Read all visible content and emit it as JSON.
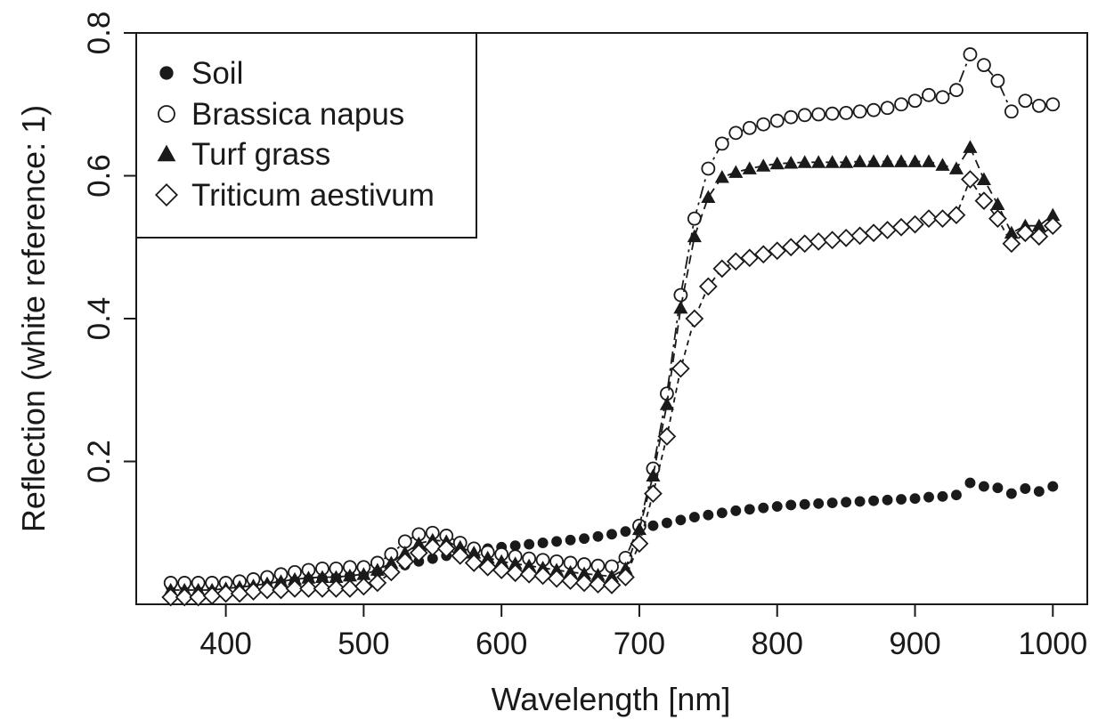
{
  "chart_data": {
    "type": "scatter",
    "xlabel": "Wavelength [nm]",
    "ylabel": "Reflection (white reference: 1)",
    "xlim": [
      335,
      1025
    ],
    "ylim": [
      0.0,
      0.8
    ],
    "xticks": [
      400,
      500,
      600,
      700,
      800,
      900,
      1000
    ],
    "yticks": [
      0.2,
      0.4,
      0.6,
      0.8
    ],
    "ytick_labels": [
      "0.2",
      "0.4",
      "0.6",
      "0.8"
    ],
    "legend_position": "top-left",
    "grid": false,
    "x": [
      360,
      370,
      380,
      390,
      400,
      410,
      420,
      430,
      440,
      450,
      460,
      470,
      480,
      490,
      500,
      510,
      520,
      530,
      540,
      550,
      560,
      570,
      580,
      590,
      600,
      610,
      620,
      630,
      640,
      650,
      660,
      670,
      680,
      690,
      700,
      710,
      720,
      730,
      740,
      750,
      760,
      770,
      780,
      790,
      800,
      810,
      820,
      830,
      840,
      850,
      860,
      870,
      880,
      890,
      900,
      910,
      920,
      930,
      940,
      950,
      960,
      970,
      980,
      990,
      1000
    ],
    "series": [
      {
        "name": "Soil",
        "marker": "filled-circle",
        "line": "none",
        "values": [
          0.025,
          0.025,
          0.025,
          0.025,
          0.026,
          0.027,
          0.028,
          0.03,
          0.031,
          0.033,
          0.035,
          0.036,
          0.038,
          0.04,
          0.042,
          0.045,
          0.05,
          0.055,
          0.06,
          0.064,
          0.068,
          0.071,
          0.075,
          0.078,
          0.08,
          0.082,
          0.084,
          0.086,
          0.088,
          0.09,
          0.092,
          0.095,
          0.098,
          0.102,
          0.106,
          0.11,
          0.114,
          0.118,
          0.122,
          0.125,
          0.128,
          0.131,
          0.133,
          0.135,
          0.137,
          0.139,
          0.14,
          0.141,
          0.142,
          0.143,
          0.144,
          0.145,
          0.146,
          0.147,
          0.148,
          0.15,
          0.151,
          0.153,
          0.17,
          0.165,
          0.163,
          0.155,
          0.162,
          0.158,
          0.165
        ]
      },
      {
        "name": "Brassica napus",
        "marker": "open-circle",
        "line": "dash-dot",
        "values": [
          0.03,
          0.03,
          0.03,
          0.03,
          0.03,
          0.032,
          0.035,
          0.038,
          0.042,
          0.045,
          0.048,
          0.05,
          0.05,
          0.052,
          0.052,
          0.058,
          0.07,
          0.088,
          0.098,
          0.1,
          0.096,
          0.086,
          0.078,
          0.073,
          0.07,
          0.067,
          0.064,
          0.062,
          0.06,
          0.058,
          0.056,
          0.054,
          0.053,
          0.065,
          0.11,
          0.19,
          0.295,
          0.433,
          0.54,
          0.61,
          0.645,
          0.66,
          0.667,
          0.672,
          0.677,
          0.682,
          0.685,
          0.686,
          0.687,
          0.688,
          0.69,
          0.692,
          0.695,
          0.7,
          0.705,
          0.713,
          0.71,
          0.72,
          0.77,
          0.755,
          0.733,
          0.69,
          0.705,
          0.698,
          0.7
        ]
      },
      {
        "name": "Turf grass",
        "marker": "filled-triangle",
        "line": "dashed",
        "values": [
          0.02,
          0.02,
          0.02,
          0.02,
          0.022,
          0.024,
          0.026,
          0.029,
          0.032,
          0.035,
          0.037,
          0.038,
          0.038,
          0.04,
          0.042,
          0.048,
          0.058,
          0.072,
          0.085,
          0.09,
          0.088,
          0.08,
          0.072,
          0.065,
          0.06,
          0.057,
          0.054,
          0.051,
          0.048,
          0.045,
          0.043,
          0.041,
          0.039,
          0.05,
          0.105,
          0.18,
          0.28,
          0.415,
          0.515,
          0.57,
          0.598,
          0.605,
          0.61,
          0.614,
          0.617,
          0.618,
          0.619,
          0.619,
          0.619,
          0.619,
          0.62,
          0.62,
          0.62,
          0.62,
          0.62,
          0.62,
          0.615,
          0.61,
          0.64,
          0.595,
          0.56,
          0.52,
          0.53,
          0.53,
          0.545
        ]
      },
      {
        "name": "Triticum aestivum",
        "marker": "open-diamond",
        "line": "short-dash",
        "values": [
          0.01,
          0.01,
          0.01,
          0.012,
          0.015,
          0.015,
          0.018,
          0.02,
          0.02,
          0.022,
          0.022,
          0.022,
          0.022,
          0.022,
          0.025,
          0.03,
          0.045,
          0.06,
          0.072,
          0.08,
          0.078,
          0.068,
          0.058,
          0.052,
          0.048,
          0.044,
          0.042,
          0.04,
          0.036,
          0.033,
          0.03,
          0.028,
          0.027,
          0.038,
          0.085,
          0.155,
          0.235,
          0.33,
          0.4,
          0.445,
          0.47,
          0.48,
          0.485,
          0.49,
          0.495,
          0.5,
          0.505,
          0.508,
          0.51,
          0.513,
          0.516,
          0.52,
          0.524,
          0.528,
          0.532,
          0.54,
          0.54,
          0.545,
          0.595,
          0.565,
          0.54,
          0.505,
          0.52,
          0.515,
          0.53
        ]
      }
    ]
  }
}
